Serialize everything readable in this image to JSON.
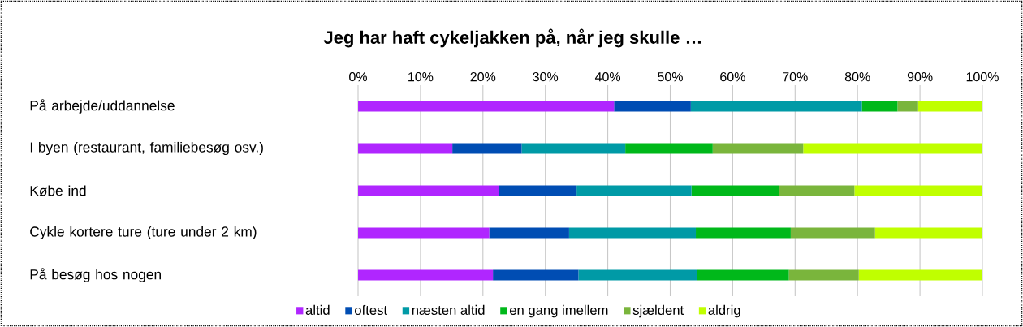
{
  "chart_data": {
    "type": "bar",
    "orientation": "horizontal",
    "stacked": true,
    "title": "Jeg har haft cykeljakken på, når jeg skulle …",
    "categories": [
      "På arbejde/uddannelse",
      "I byen (restaurant, familiebesøg osv.)",
      "Købe ind",
      "Cykle kortere ture (ture under 2 km)",
      "På besøg hos nogen"
    ],
    "series": [
      {
        "name": "altid",
        "color": "#b026ff",
        "values": [
          41.0,
          15.1,
          22.5,
          21.0,
          21.6
        ]
      },
      {
        "name": "oftest",
        "color": "#004db3",
        "values": [
          12.3,
          11.1,
          12.5,
          12.8,
          13.7
        ]
      },
      {
        "name": "næsten altid",
        "color": "#009aa6",
        "values": [
          27.4,
          16.6,
          18.4,
          20.3,
          19.0
        ]
      },
      {
        "name": "en gang imellem",
        "color": "#00b81a",
        "values": [
          5.7,
          14.0,
          14.0,
          15.2,
          14.7
        ]
      },
      {
        "name": "sjældent",
        "color": "#7ab53c",
        "values": [
          3.3,
          14.5,
          12.1,
          13.5,
          11.2
        ]
      },
      {
        "name": "aldrig",
        "color": "#c0ff00",
        "values": [
          10.3,
          28.7,
          20.5,
          17.2,
          19.8
        ]
      }
    ],
    "xlim": [
      0,
      100
    ],
    "xticks": [
      {
        "value": 0,
        "label": "0%"
      },
      {
        "value": 10,
        "label": "10%"
      },
      {
        "value": 20,
        "label": "20%"
      },
      {
        "value": 30,
        "label": "30%"
      },
      {
        "value": 40,
        "label": "40%"
      },
      {
        "value": 50,
        "label": "50%"
      },
      {
        "value": 60,
        "label": "60%"
      },
      {
        "value": 70,
        "label": "70%"
      },
      {
        "value": 80,
        "label": "80%"
      },
      {
        "value": 90,
        "label": "90%"
      },
      {
        "value": 100,
        "label": "100%"
      }
    ],
    "grid": "x",
    "legend": "bottom"
  }
}
